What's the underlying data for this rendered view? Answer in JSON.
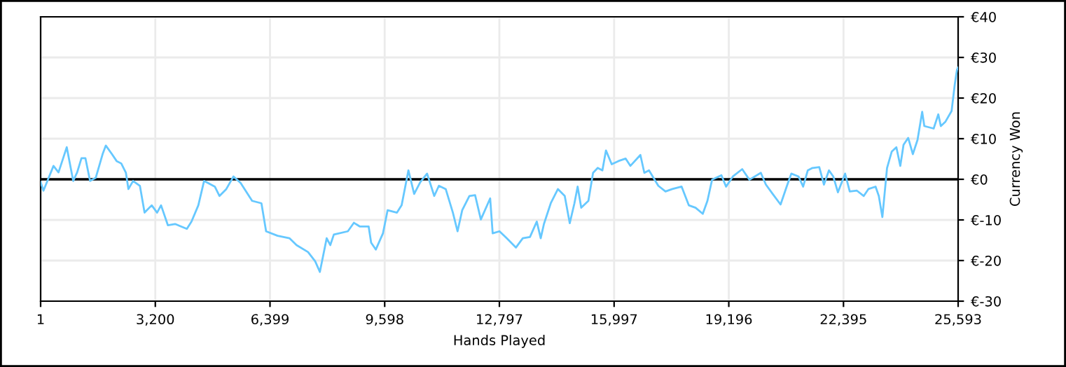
{
  "chart_data": {
    "type": "line",
    "xlabel": "Hands Played",
    "ylabel": "Currency Won",
    "xlim": [
      1,
      25593
    ],
    "ylim": [
      -30,
      40
    ],
    "xticks": [
      1,
      {
        "value": 3200,
        "label": "3,200"
      },
      {
        "value": 6399,
        "label": "6,399"
      },
      {
        "value": 9598,
        "label": "9,598"
      },
      {
        "value": 12797,
        "label": "12,797"
      },
      {
        "value": 15997,
        "label": "15,997"
      },
      {
        "value": 19196,
        "label": "19,196"
      },
      {
        "value": 22395,
        "label": "22,395"
      },
      {
        "value": 25593,
        "label": "25,593"
      }
    ],
    "yticks": [
      {
        "value": -30,
        "label": "€-30"
      },
      {
        "value": -20,
        "label": "€-20"
      },
      {
        "value": -10,
        "label": "€-10"
      },
      {
        "value": 0,
        "label": "€0"
      },
      {
        "value": 10,
        "label": "€10"
      },
      {
        "value": 20,
        "label": "€20"
      },
      {
        "value": 30,
        "label": "€30"
      },
      {
        "value": 40,
        "label": "€40"
      }
    ],
    "grid": true,
    "legend": false,
    "ref_lines": [
      {
        "axis": "y",
        "value": 0,
        "color": "#000000"
      }
    ],
    "series": [
      {
        "color": "#66c8ff",
        "x": [
          1,
          80,
          360,
          500,
          730,
          910,
          1020,
          1140,
          1250,
          1380,
          1540,
          1730,
          1820,
          1990,
          2120,
          2250,
          2380,
          2450,
          2580,
          2770,
          2900,
          3100,
          3250,
          3360,
          3550,
          3750,
          4080,
          4210,
          4400,
          4560,
          4860,
          4990,
          5180,
          5380,
          5580,
          5900,
          6160,
          6290,
          6610,
          6940,
          7140,
          7460,
          7660,
          7790,
          7980,
          8080,
          8180,
          8570,
          8740,
          8900,
          9150,
          9220,
          9350,
          9550,
          9680,
          9940,
          10070,
          10260,
          10420,
          10590,
          10780,
          10980,
          11110,
          11300,
          11500,
          11630,
          11760,
          11960,
          12120,
          12280,
          12540,
          12610,
          12800,
          13000,
          13260,
          13450,
          13650,
          13840,
          13950,
          14040,
          14230,
          14430,
          14620,
          14760,
          14890,
          14980,
          15080,
          15280,
          15410,
          15540,
          15670,
          15770,
          15930,
          16120,
          16320,
          16450,
          16730,
          16840,
          16970,
          17230,
          17430,
          17620,
          17880,
          18080,
          18270,
          18470,
          18600,
          18730,
          18990,
          19120,
          19310,
          19570,
          19770,
          20090,
          20230,
          20420,
          20640,
          20810,
          20940,
          21140,
          21270,
          21400,
          21530,
          21720,
          21850,
          21990,
          22110,
          22240,
          22440,
          22570,
          22770,
          22960,
          23090,
          23290,
          23380,
          23480,
          23610,
          23740,
          23870,
          23980,
          24070,
          24200,
          24330,
          24460,
          24590,
          24650,
          24910,
          25040,
          25110,
          25240,
          25410,
          25500,
          25560,
          25593
        ],
        "values": [
          -0.7,
          -2.8,
          3.3,
          1.7,
          7.9,
          -0.4,
          1.7,
          5.2,
          5.2,
          -0.4,
          0.4,
          6.2,
          8.3,
          6.2,
          4.5,
          3.9,
          1.6,
          -2.4,
          -0.4,
          -1.6,
          -8.2,
          -6.4,
          -8.2,
          -6.4,
          -11.3,
          -11.0,
          -12.2,
          -10.4,
          -6.4,
          -0.4,
          -1.8,
          -4.1,
          -2.4,
          0.7,
          -0.9,
          -5.3,
          -5.9,
          -12.8,
          -13.9,
          -14.5,
          -16.2,
          -17.9,
          -20.2,
          -22.8,
          -14.5,
          -16.2,
          -13.6,
          -12.8,
          -10.7,
          -11.6,
          -11.6,
          -15.6,
          -17.3,
          -13.3,
          -7.6,
          -8.2,
          -6.4,
          2.2,
          -3.6,
          -0.7,
          1.4,
          -4.1,
          -1.6,
          -2.4,
          -8.2,
          -12.8,
          -7.6,
          -4.1,
          -3.9,
          -9.9,
          -4.7,
          -13.3,
          -12.8,
          -14.5,
          -16.8,
          -14.5,
          -14.2,
          -10.4,
          -14.5,
          -11.0,
          -5.9,
          -2.4,
          -4.1,
          -10.8,
          -5.9,
          -1.8,
          -7.0,
          -5.3,
          1.6,
          2.8,
          2.2,
          7.1,
          3.7,
          4.5,
          5.1,
          3.3,
          6.0,
          1.6,
          2.2,
          -1.6,
          -3.0,
          -2.4,
          -1.8,
          -6.4,
          -7.0,
          -8.5,
          -5.3,
          -0.1,
          1.0,
          -1.8,
          0.7,
          2.5,
          -0.1,
          1.6,
          -1.3,
          -3.6,
          -6.2,
          -1.8,
          1.4,
          0.7,
          -1.8,
          2.2,
          2.8,
          3.0,
          -1.3,
          2.2,
          0.7,
          -3.2,
          1.4,
          -3.0,
          -2.8,
          -4.1,
          -2.4,
          -1.8,
          -4.1,
          -9.3,
          2.8,
          6.8,
          7.9,
          3.3,
          8.5,
          10.2,
          6.2,
          9.7,
          16.6,
          13.1,
          12.5,
          16.0,
          13.1,
          14.2,
          16.8,
          23.4,
          26.9,
          27.5
        ]
      }
    ]
  }
}
